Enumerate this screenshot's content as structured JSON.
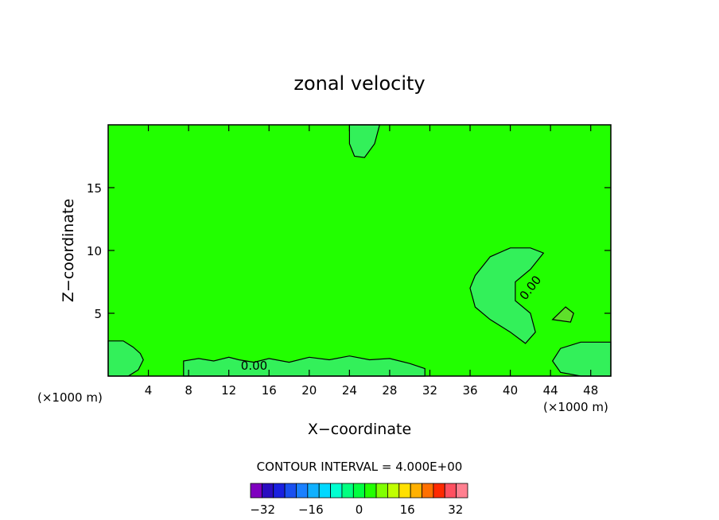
{
  "chart_data": {
    "type": "contour",
    "title": "zonal velocity",
    "xlabel": "X−coordinate",
    "ylabel": "Z−coordinate",
    "x_unit_label": "(×1000 m)",
    "xlim": [
      0,
      50
    ],
    "ylim": [
      0,
      20
    ],
    "x_ticks": [
      4,
      8,
      12,
      16,
      20,
      24,
      28,
      32,
      36,
      40,
      44,
      48
    ],
    "y_ticks": [
      5,
      10,
      15
    ],
    "contour_interval_text": "CONTOUR INTERVAL = 4.000E+00",
    "contour_label": "0.00",
    "background_color": "#22ff00",
    "colorbar": {
      "tick_labels": [
        "−32",
        "−16",
        "0",
        "16",
        "32"
      ],
      "tick_values": [
        -32,
        -16,
        0,
        16,
        32
      ],
      "min": -36,
      "max": 36,
      "step": 4,
      "colors": [
        "#7f00bf",
        "#2a0cc0",
        "#1a20e0",
        "#1a50f0",
        "#1a80ff",
        "#10b0ff",
        "#00d8ff",
        "#00ffd0",
        "#00ff80",
        "#00ff40",
        "#22ff00",
        "#80ff00",
        "#c0ff00",
        "#ffe000",
        "#ffb000",
        "#ff7000",
        "#ff2a00",
        "#ff5060",
        "#ff8090"
      ]
    },
    "regions": [
      {
        "name": "top-lobe",
        "color": "#33f05a",
        "points": [
          [
            24,
            20
          ],
          [
            27,
            20
          ],
          [
            26.5,
            18.5
          ],
          [
            25.5,
            17.4
          ],
          [
            24.5,
            17.5
          ],
          [
            24,
            18.5
          ]
        ]
      },
      {
        "name": "right-lobe",
        "color": "#33f05a",
        "points": [
          [
            36,
            7
          ],
          [
            36.5,
            8
          ],
          [
            38,
            9.5
          ],
          [
            40,
            10.2
          ],
          [
            42,
            10.2
          ],
          [
            43.3,
            9.8
          ],
          [
            42,
            8.5
          ],
          [
            40.5,
            7.5
          ],
          [
            40.5,
            6
          ],
          [
            42,
            5
          ],
          [
            42.5,
            3.5
          ],
          [
            41.5,
            2.6
          ],
          [
            40,
            3.5
          ],
          [
            38,
            4.5
          ],
          [
            36.5,
            5.5
          ]
        ]
      },
      {
        "name": "small-spot",
        "color": "#5ee02a",
        "points": [
          [
            44.2,
            4.5
          ],
          [
            45.5,
            5.5
          ],
          [
            46.3,
            5
          ],
          [
            46,
            4.3
          ]
        ]
      },
      {
        "name": "left-bottom",
        "color": "#33f05a",
        "points": [
          [
            0,
            0
          ],
          [
            0,
            2.8
          ],
          [
            1.5,
            2.8
          ],
          [
            2.5,
            2.3
          ],
          [
            3.2,
            1.8
          ],
          [
            3.5,
            1.3
          ],
          [
            3,
            0.5
          ],
          [
            2,
            0
          ]
        ]
      },
      {
        "name": "right-bottom",
        "color": "#33f05a",
        "points": [
          [
            50,
            0
          ],
          [
            50,
            2.7
          ],
          [
            47,
            2.7
          ],
          [
            45,
            2.2
          ],
          [
            44.2,
            1.2
          ],
          [
            45,
            0.3
          ],
          [
            47,
            0
          ]
        ]
      },
      {
        "name": "bottom-band",
        "color": "#33f05a",
        "points": [
          [
            7.5,
            0
          ],
          [
            7.5,
            1.2
          ],
          [
            9,
            1.4
          ],
          [
            10.5,
            1.2
          ],
          [
            12,
            1.5
          ],
          [
            13,
            1.3
          ],
          [
            14.5,
            1.1
          ],
          [
            16,
            1.4
          ],
          [
            18,
            1.1
          ],
          [
            20,
            1.5
          ],
          [
            22,
            1.3
          ],
          [
            24,
            1.6
          ],
          [
            26,
            1.3
          ],
          [
            28,
            1.4
          ],
          [
            30,
            1.0
          ],
          [
            31.5,
            0.6
          ],
          [
            31.5,
            0
          ]
        ]
      }
    ]
  }
}
